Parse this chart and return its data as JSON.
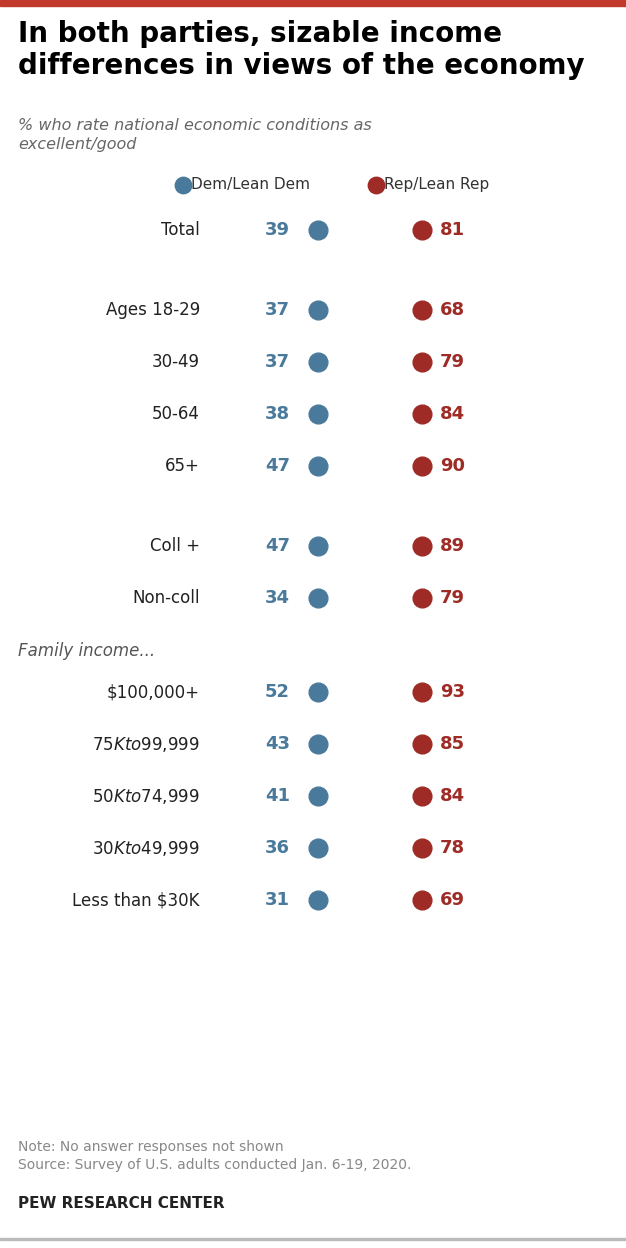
{
  "title": "In both parties, sizable income\ndifferences in views of the economy",
  "subtitle": "% who rate national economic conditions as\nexcellent/good",
  "dem_color": "#4a7a9b",
  "rep_color": "#9e2b25",
  "dem_label": "Dem/Lean Dem",
  "rep_label": "Rep/Lean Rep",
  "note": "Note: No answer responses not shown\nSource: Survey of U.S. adults conducted Jan. 6-19, 2020.",
  "footer": "PEW RESEARCH CENTER",
  "rows": [
    {
      "label": "Total",
      "dem": 39,
      "rep": 81,
      "extra_gap_above": false,
      "section_header": null
    },
    {
      "label": "Ages 18-29",
      "dem": 37,
      "rep": 68,
      "extra_gap_above": true,
      "section_header": null
    },
    {
      "label": "30-49",
      "dem": 37,
      "rep": 79,
      "extra_gap_above": false,
      "section_header": null
    },
    {
      "label": "50-64",
      "dem": 38,
      "rep": 84,
      "extra_gap_above": false,
      "section_header": null
    },
    {
      "label": "65+",
      "dem": 47,
      "rep": 90,
      "extra_gap_above": false,
      "section_header": null
    },
    {
      "label": "Coll +",
      "dem": 47,
      "rep": 89,
      "extra_gap_above": true,
      "section_header": null
    },
    {
      "label": "Non-coll",
      "dem": 34,
      "rep": 79,
      "extra_gap_above": false,
      "section_header": null
    },
    {
      "label": "$100,000+",
      "dem": 52,
      "rep": 93,
      "extra_gap_above": true,
      "section_header": "Family income..."
    },
    {
      "label": "$75K to $99,999",
      "dem": 43,
      "rep": 85,
      "extra_gap_above": false,
      "section_header": null
    },
    {
      "label": "$50K to $74,999",
      "dem": 41,
      "rep": 84,
      "extra_gap_above": false,
      "section_header": null
    },
    {
      "label": "$30K to $49,999",
      "dem": 36,
      "rep": 78,
      "extra_gap_above": false,
      "section_header": null
    },
    {
      "label": "Less than $30K",
      "dem": 31,
      "rep": 69,
      "extra_gap_above": false,
      "section_header": null
    }
  ],
  "background_color": "#ffffff",
  "top_bar_color": "#c0392b",
  "dot_size": 140,
  "value_fontsize": 13,
  "label_fontsize": 12,
  "title_fontsize": 20,
  "subtitle_fontsize": 11.5,
  "legend_fontsize": 11,
  "note_fontsize": 10,
  "footer_fontsize": 11
}
